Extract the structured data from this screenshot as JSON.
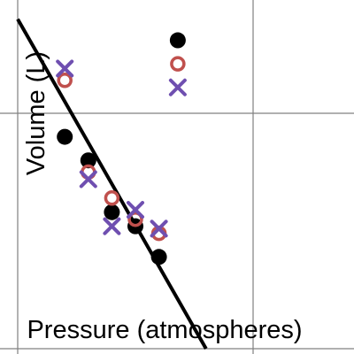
{
  "chart_data": {
    "type": "scatter",
    "xlabel": "Pressure (atmospheres)",
    "ylabel": "Volume (L)",
    "grid": true,
    "xlim": [
      0,
      15
    ],
    "ylim": [
      0,
      15
    ],
    "colors": {
      "black": "#000000",
      "red": "#c0504d",
      "purple": "#6f4fb0",
      "grid": "#808080",
      "line": "#000000"
    },
    "series": [
      {
        "marker": "filled-circle",
        "color": "#000000",
        "x": [
          6.8,
          2.0,
          3.0,
          4.0,
          5.0,
          6.0
        ],
        "y": [
          13.1,
          9.0,
          8.0,
          5.8,
          5.2,
          3.9
        ]
      },
      {
        "marker": "open-circle",
        "color": "#c0504d",
        "x": [
          6.8,
          2.0,
          3.0,
          4.0,
          5.0,
          6.0
        ],
        "y": [
          12.1,
          11.4,
          7.5,
          6.4,
          5.5,
          4.9
        ]
      },
      {
        "marker": "x",
        "color": "#6f4fb0",
        "x": [
          6.8,
          2.0,
          3.0,
          4.0,
          5.0,
          6.0
        ],
        "y": [
          11.1,
          11.9,
          7.2,
          5.2,
          5.9,
          5.1
        ]
      }
    ],
    "trend_line": {
      "from": [
        0,
        14.0
      ],
      "to": [
        8.0,
        0
      ]
    }
  }
}
